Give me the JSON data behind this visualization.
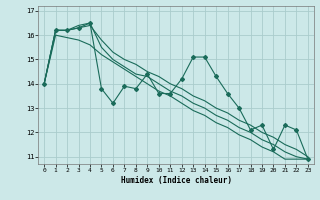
{
  "xlabel": "Humidex (Indice chaleur)",
  "ylabel": "",
  "background_color": "#cce8e8",
  "grid_color": "#aacccc",
  "line_color": "#1a6b5a",
  "xlim": [
    -0.5,
    23.5
  ],
  "ylim": [
    10.7,
    17.2
  ],
  "yticks": [
    11,
    12,
    13,
    14,
    15,
    16,
    17
  ],
  "xticks": [
    0,
    1,
    2,
    3,
    4,
    5,
    6,
    7,
    8,
    9,
    10,
    11,
    12,
    13,
    14,
    15,
    16,
    17,
    18,
    19,
    20,
    21,
    22,
    23
  ],
  "series": [
    [
      14.0,
      16.2,
      16.2,
      16.3,
      16.5,
      13.8,
      13.2,
      13.9,
      13.8,
      14.4,
      13.6,
      13.6,
      14.2,
      15.1,
      15.1,
      14.3,
      13.6,
      13.0,
      12.1,
      12.3,
      11.3,
      12.3,
      12.1,
      10.9
    ],
    [
      14.0,
      16.2,
      16.2,
      16.4,
      16.5,
      15.5,
      15.0,
      14.7,
      14.4,
      14.3,
      14.0,
      13.7,
      13.5,
      13.2,
      13.0,
      12.7,
      12.5,
      12.2,
      12.0,
      11.7,
      11.5,
      11.2,
      11.0,
      10.9
    ],
    [
      14.0,
      16.2,
      16.2,
      16.3,
      16.4,
      15.8,
      15.3,
      15.0,
      14.8,
      14.5,
      14.3,
      14.0,
      13.8,
      13.5,
      13.3,
      13.0,
      12.8,
      12.5,
      12.3,
      12.0,
      11.8,
      11.5,
      11.3,
      11.0
    ],
    [
      14.0,
      16.0,
      15.9,
      15.8,
      15.6,
      15.2,
      14.9,
      14.6,
      14.3,
      14.0,
      13.7,
      13.5,
      13.2,
      12.9,
      12.7,
      12.4,
      12.2,
      11.9,
      11.7,
      11.4,
      11.2,
      10.9,
      10.9,
      10.9
    ]
  ]
}
